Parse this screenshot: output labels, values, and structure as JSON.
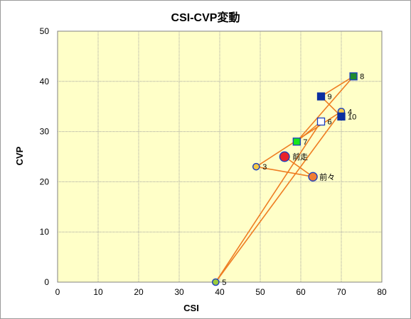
{
  "chart_data": {
    "type": "scatter",
    "title": "CSI-CVP変動",
    "xlabel": "CSI",
    "ylabel": "CVP",
    "xlim": [
      0,
      80
    ],
    "ylim": [
      0,
      50
    ],
    "xticks": [
      0,
      10,
      20,
      30,
      40,
      50,
      60,
      70,
      80
    ],
    "yticks": [
      0,
      10,
      20,
      30,
      40,
      50
    ],
    "grid": true,
    "line_color": "#ee7d22",
    "plot_background": "#ffffc8",
    "points": [
      {
        "label": "前走",
        "x": 56,
        "y": 25,
        "marker": "circle-large",
        "fill": "#e8222a",
        "stroke": "#1a3fbf"
      },
      {
        "label": "前々",
        "x": 63,
        "y": 21,
        "marker": "circle",
        "fill": "#f07d32",
        "stroke": "#1a3fbf"
      },
      {
        "label": "3",
        "x": 49,
        "y": 23,
        "marker": "circle-small",
        "fill": "#f5c842",
        "stroke": "#1a3fbf"
      },
      {
        "label": "4",
        "x": 70,
        "y": 34,
        "marker": "circle-small",
        "fill": "#f5c842",
        "stroke": "#1a3fbf"
      },
      {
        "label": "5",
        "x": 39,
        "y": 0,
        "marker": "circle-small",
        "fill": "#9acb3c",
        "stroke": "#1a3fbf"
      },
      {
        "label": "6",
        "x": 65,
        "y": 32,
        "marker": "square",
        "fill": "#ffffff",
        "stroke": "#1a3fbf"
      },
      {
        "label": "7",
        "x": 59,
        "y": 28,
        "marker": "square",
        "fill": "#19e619",
        "stroke": "#1a3fbf"
      },
      {
        "label": "8",
        "x": 73,
        "y": 41,
        "marker": "square",
        "fill": "#1f8a2e",
        "stroke": "#1a3fbf"
      },
      {
        "label": "9",
        "x": 65,
        "y": 37,
        "marker": "square",
        "fill": "#0a2fa0",
        "stroke": "#0a2fa0"
      },
      {
        "label": "10",
        "x": 70,
        "y": 33,
        "marker": "square",
        "fill": "#0a2fa0",
        "stroke": "#0a2fa0"
      }
    ],
    "path": [
      "前走",
      "前々",
      "3",
      "4",
      "5",
      "6",
      "7",
      "8",
      "9",
      "10"
    ]
  }
}
